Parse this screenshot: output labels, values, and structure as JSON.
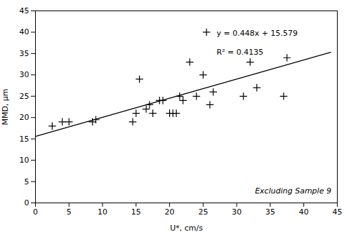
{
  "chart_data": {
    "type": "scatter",
    "xlabel": "U*, cm/s",
    "ylabel": "MMD, μm",
    "xlim": [
      0,
      45
    ],
    "ylim": [
      0,
      45
    ],
    "xticks": [
      0,
      5,
      10,
      15,
      20,
      25,
      30,
      35,
      40,
      45
    ],
    "yticks": [
      0,
      5,
      10,
      15,
      20,
      25,
      30,
      35,
      40,
      45
    ],
    "series": [
      {
        "type": "scatter",
        "marker": "+",
        "color": "black",
        "x": [
          2.5,
          4.0,
          5.0,
          8.5,
          9.0,
          14.5,
          15.0,
          15.5,
          16.5,
          17.0,
          17.5,
          18.5,
          19.0,
          20.0,
          20.5,
          21.0,
          21.5,
          22.0,
          23.0,
          24.0,
          25.0,
          25.5,
          26.0,
          26.5,
          31.0,
          32.0,
          33.0,
          37.0,
          37.5
        ],
        "values": [
          18.0,
          19.0,
          19.0,
          19.0,
          19.5,
          19.0,
          21.0,
          29.0,
          22.0,
          23.0,
          21.0,
          24.0,
          24.0,
          21.0,
          21.0,
          21.0,
          25.0,
          24.0,
          33.0,
          25.0,
          30.0,
          40.0,
          23.0,
          26.0,
          25.0,
          33.0,
          27.0,
          25.0,
          34.0
        ]
      },
      {
        "type": "line",
        "color": "black",
        "x": [
          0,
          44
        ],
        "values": [
          15.579,
          35.291
        ]
      }
    ],
    "annotations": [
      "y = 0.448x + 15.579",
      "R² = 0.4135",
      "Excluding Sample 9"
    ]
  }
}
